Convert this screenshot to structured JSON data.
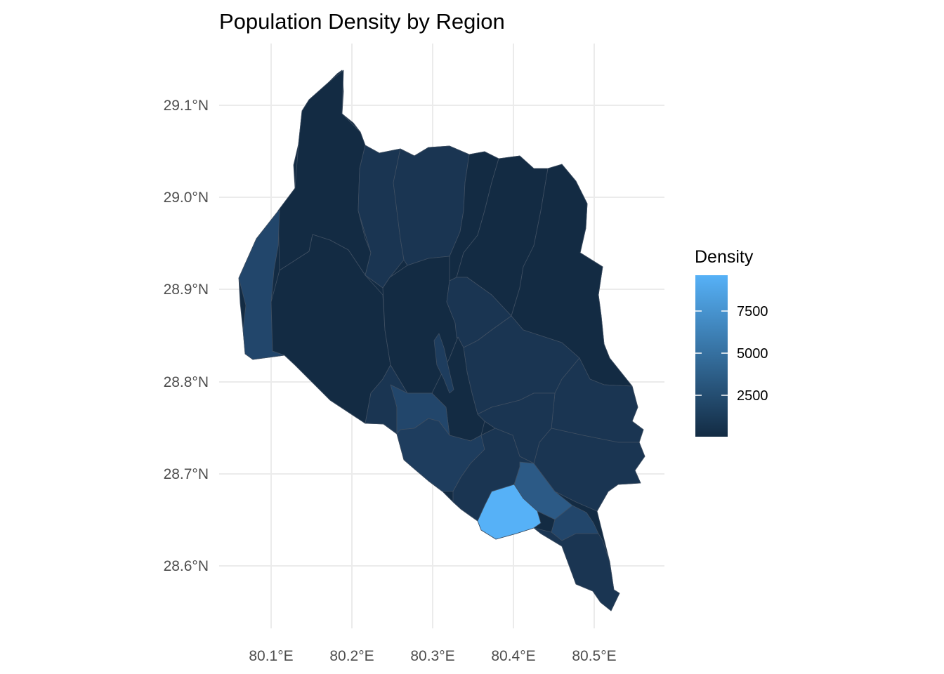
{
  "map": {
    "title": "Population Density by Region",
    "x_axis": {
      "ticks": [
        "80.1°E",
        "80.2°E",
        "80.3°E",
        "80.4°E",
        "80.5°E"
      ],
      "values": [
        80.1,
        80.2,
        80.3,
        80.4,
        80.5
      ]
    },
    "y_axis": {
      "ticks": [
        "29.1°N",
        "29.0°N",
        "28.9°N",
        "28.8°N",
        "28.7°N",
        "28.6°N"
      ],
      "values": [
        29.1,
        29.0,
        28.9,
        28.8,
        28.7,
        28.6
      ]
    },
    "grid": true,
    "legend": {
      "title": "Density",
      "position": "right",
      "labels": [
        "7500",
        "5000",
        "2500"
      ],
      "values": [
        7500,
        5000,
        2500
      ],
      "color_low": "#132b43",
      "color_high": "#56b1f7"
    },
    "colors": {
      "region_lowest": "#132b43",
      "region_low": "#1a3552",
      "region_mid": "#22466b",
      "region_midhigh": "#2c5a86",
      "region_highest": "#56b1f7"
    }
  }
}
